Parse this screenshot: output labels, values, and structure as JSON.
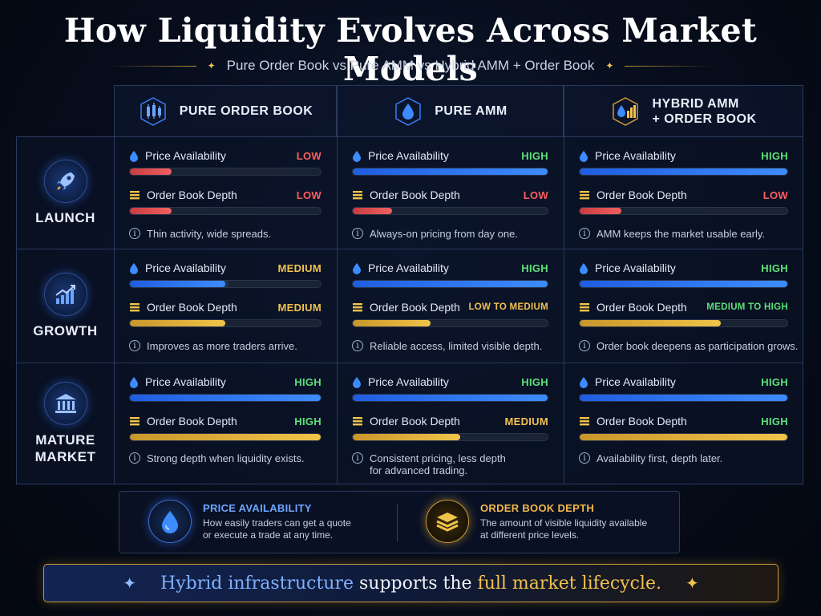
{
  "title": "How Liquidity Evolves Across Market Models",
  "subtitle": "Pure Order Book vs Pure AMM vs Hybrid AMM + Order Book",
  "columns": [
    {
      "label_line1": "PURE ORDER BOOK",
      "label_line2": "",
      "icon": "candlestick-icon"
    },
    {
      "label_line1": "PURE AMM",
      "label_line2": "",
      "icon": "droplet-icon"
    },
    {
      "label_line1": "HYBRID AMM",
      "label_line2": "+ ORDER BOOK",
      "icon": "droplet-bars-icon"
    }
  ],
  "metric_names": {
    "price": "Price Availability",
    "depth": "Order Book Depth"
  },
  "rows": [
    {
      "label_line1": "LAUNCH",
      "label_line2": "",
      "icon": "rocket-icon",
      "cells": [
        {
          "price_level": "LOW",
          "price_fill": 0.22,
          "depth_level": "LOW",
          "depth_fill": 0.22,
          "note_line1": "Thin activity, wide spreads.",
          "note_line2": ""
        },
        {
          "price_level": "HIGH",
          "price_fill": 1.0,
          "depth_level": "LOW",
          "depth_fill": 0.2,
          "note_line1": "Always-on pricing from day one.",
          "note_line2": ""
        },
        {
          "price_level": "HIGH",
          "price_fill": 1.0,
          "depth_level": "LOW",
          "depth_fill": 0.2,
          "note_line1": "AMM keeps the market usable early.",
          "note_line2": ""
        }
      ]
    },
    {
      "label_line1": "GROWTH",
      "label_line2": "",
      "icon": "growth-chart-icon",
      "cells": [
        {
          "price_level": "MEDIUM",
          "price_fill": 0.5,
          "depth_level": "MEDIUM",
          "depth_fill": 0.5,
          "note_line1": "Improves as more traders arrive.",
          "note_line2": ""
        },
        {
          "price_level": "HIGH",
          "price_fill": 1.0,
          "depth_level": "LOW TO MEDIUM",
          "depth_fill": 0.4,
          "note_line1": "Reliable access, limited visible depth.",
          "note_line2": ""
        },
        {
          "price_level": "HIGH",
          "price_fill": 1.0,
          "depth_level": "MEDIUM TO HIGH",
          "depth_fill": 0.68,
          "note_line1": "Order book deepens as participation grows.",
          "note_line2": ""
        }
      ]
    },
    {
      "label_line1": "MATURE",
      "label_line2": "MARKET",
      "icon": "bank-icon",
      "cells": [
        {
          "price_level": "HIGH",
          "price_fill": 1.0,
          "depth_level": "HIGH",
          "depth_fill": 1.0,
          "note_line1": "Strong depth when liquidity exists.",
          "note_line2": ""
        },
        {
          "price_level": "HIGH",
          "price_fill": 1.0,
          "depth_level": "MEDIUM",
          "depth_fill": 0.55,
          "note_line1": "Consistent pricing, less depth",
          "note_line2": "for advanced trading."
        },
        {
          "price_level": "HIGH",
          "price_fill": 1.0,
          "depth_level": "HIGH",
          "depth_fill": 1.0,
          "note_line1": "Availability first, depth later.",
          "note_line2": ""
        }
      ]
    }
  ],
  "legend": {
    "price": {
      "title": "PRICE AVAILABILITY",
      "desc_line1": "How easily traders can get a quote",
      "desc_line2": "or execute a trade at any time."
    },
    "depth": {
      "title": "ORDER BOOK DEPTH",
      "desc_line1": "The amount of visible liquidity available",
      "desc_line2": "at different price levels."
    }
  },
  "banner": {
    "part1": "Hybrid infrastructure",
    "part2": " supports the ",
    "part3": "full market lifecycle."
  },
  "colors": {
    "low": "#ff5e5e",
    "medium": "#f2c14e",
    "high": "#5fe07a",
    "blue_bar": "#3d8cff",
    "red_bar": "#f06060",
    "gold_bar": "#f0c44a"
  }
}
